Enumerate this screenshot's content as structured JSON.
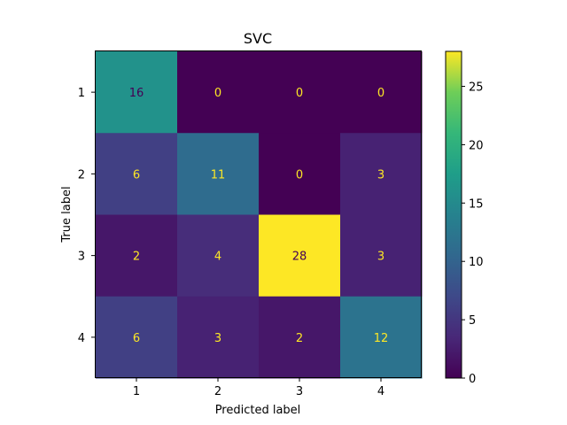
{
  "chart_data": {
    "type": "heatmap",
    "title": "SVC",
    "xlabel": "Predicted label",
    "ylabel": "True label",
    "x_categories": [
      "1",
      "2",
      "3",
      "4"
    ],
    "y_categories": [
      "1",
      "2",
      "3",
      "4"
    ],
    "matrix": [
      [
        16,
        0,
        0,
        0
      ],
      [
        6,
        11,
        0,
        3
      ],
      [
        2,
        4,
        28,
        3
      ],
      [
        6,
        3,
        2,
        12
      ]
    ],
    "colormap": "viridis",
    "colorbar": {
      "range": [
        0,
        28
      ],
      "ticks": [
        0,
        5,
        10,
        15,
        20,
        25
      ]
    },
    "text_colors": {
      "on_dark": "#fde725",
      "on_light": "#440154"
    }
  }
}
